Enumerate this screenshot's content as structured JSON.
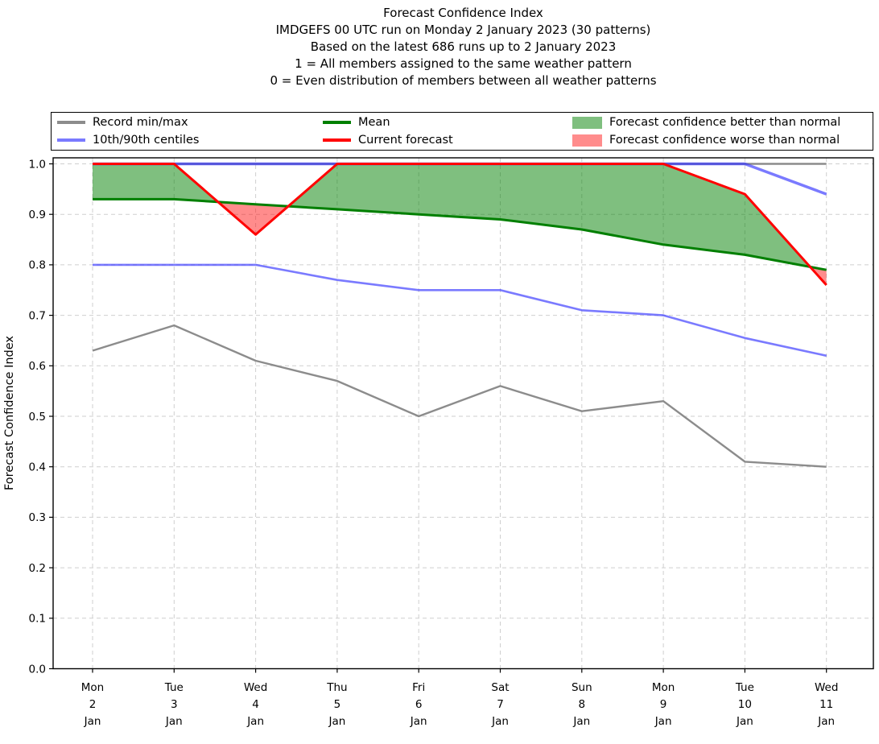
{
  "header": {
    "lines": [
      "Forecast Confidence Index",
      "IMDGEFS 00 UTC run on Monday 2 January 2023 (30 patterns)",
      "Based on the latest 686 runs up to 2 January 2023",
      "1 = All members assigned to the same weather pattern",
      "0 = Even distribution of members between all weather patterns"
    ]
  },
  "legend": {
    "items": [
      {
        "label": "Record min/max",
        "type": "line",
        "color": "#8c8c8c",
        "opacity": 1
      },
      {
        "label": "10th/90th centiles",
        "type": "line",
        "color": "#3333ff",
        "opacity": 0.65
      },
      {
        "label": "Mean",
        "type": "line",
        "color": "#007f00",
        "opacity": 1
      },
      {
        "label": "Current forecast",
        "type": "line",
        "color": "#ff0000",
        "opacity": 1
      },
      {
        "label": "Forecast confidence better than normal",
        "type": "patch",
        "color": "#008000",
        "opacity": 0.5
      },
      {
        "label": "Forecast confidence worse than normal",
        "type": "patch",
        "color": "#ff0000",
        "opacity": 0.45
      }
    ]
  },
  "chart_data": {
    "type": "line",
    "title": "Forecast Confidence Index",
    "xlabel": "",
    "ylabel": "Forecast Confidence Index",
    "ylim": [
      0.0,
      1.0
    ],
    "yticks": [
      "0.0",
      "0.1",
      "0.2",
      "0.3",
      "0.4",
      "0.5",
      "0.6",
      "0.7",
      "0.8",
      "0.9",
      "1.0"
    ],
    "grid": true,
    "legend_position": "top",
    "categories": [
      {
        "dow": "Mon",
        "date": "2",
        "month": "Jan"
      },
      {
        "dow": "Tue",
        "date": "3",
        "month": "Jan"
      },
      {
        "dow": "Wed",
        "date": "4",
        "month": "Jan"
      },
      {
        "dow": "Thu",
        "date": "5",
        "month": "Jan"
      },
      {
        "dow": "Fri",
        "date": "6",
        "month": "Jan"
      },
      {
        "dow": "Sat",
        "date": "7",
        "month": "Jan"
      },
      {
        "dow": "Sun",
        "date": "8",
        "month": "Jan"
      },
      {
        "dow": "Mon",
        "date": "9",
        "month": "Jan"
      },
      {
        "dow": "Tue",
        "date": "10",
        "month": "Jan"
      },
      {
        "dow": "Wed",
        "date": "11",
        "month": "Jan"
      }
    ],
    "series": [
      {
        "name": "Record max",
        "color": "#8c8c8c",
        "values": [
          1.0,
          1.0,
          1.0,
          1.0,
          1.0,
          1.0,
          1.0,
          1.0,
          1.0,
          1.0
        ]
      },
      {
        "name": "Record min",
        "color": "#8c8c8c",
        "values": [
          0.63,
          0.68,
          0.61,
          0.57,
          0.5,
          0.56,
          0.51,
          0.53,
          0.41,
          0.4
        ]
      },
      {
        "name": "90th centile",
        "color": "#3333ff",
        "values": [
          1.0,
          1.0,
          1.0,
          1.0,
          1.0,
          1.0,
          1.0,
          1.0,
          1.0,
          0.94
        ]
      },
      {
        "name": "10th centile",
        "color": "#3333ff",
        "values": [
          0.8,
          0.8,
          0.8,
          0.77,
          0.75,
          0.75,
          0.71,
          0.7,
          0.655,
          0.62
        ]
      },
      {
        "name": "Mean",
        "color": "#007f00",
        "values": [
          0.93,
          0.93,
          0.92,
          0.91,
          0.9,
          0.89,
          0.87,
          0.84,
          0.82,
          0.79
        ]
      },
      {
        "name": "Current forecast",
        "color": "#ff0000",
        "values": [
          1.0,
          1.0,
          0.86,
          1.0,
          1.0,
          1.0,
          1.0,
          1.0,
          0.94,
          0.76
        ]
      }
    ],
    "fills": [
      {
        "name": "Forecast confidence better than normal",
        "between": [
          "Current forecast",
          "Mean"
        ],
        "where": "current > mean",
        "color": "#008000"
      },
      {
        "name": "Forecast confidence worse than normal",
        "between": [
          "Current forecast",
          "Mean"
        ],
        "where": "current < mean",
        "color": "#ff0000"
      }
    ]
  }
}
